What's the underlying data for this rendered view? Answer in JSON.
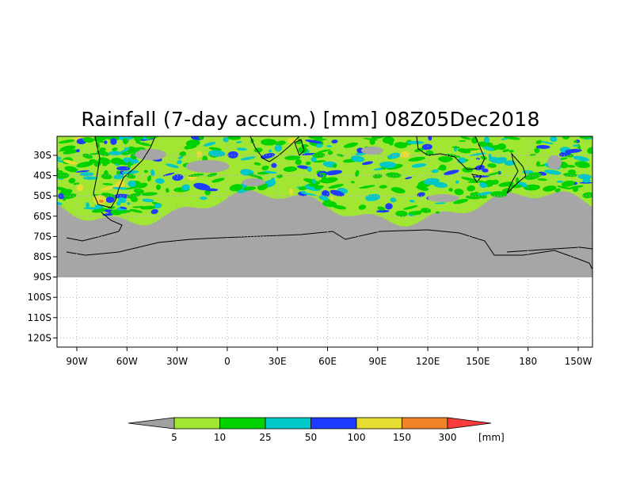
{
  "title": "Rainfall (7-day accum.) [mm] 08Z05Dec2018",
  "lon_labels": [
    "90W",
    "60W",
    "30W",
    "0",
    "30E",
    "60E",
    "90E",
    "120E",
    "150E",
    "180",
    "150W"
  ],
  "lat_labels": [
    "30S",
    "40S",
    "50S",
    "60S",
    "70S",
    "80S",
    "90S",
    "100S",
    "110S",
    "120S"
  ],
  "colorbar": {
    "values": [
      "5",
      "10",
      "25",
      "50",
      "100",
      "150",
      "300"
    ],
    "unit": "[mm]",
    "colors": [
      "#a0a0a0",
      "#a0e632",
      "#00d200",
      "#00c8c8",
      "#1e3cff",
      "#e6dc32",
      "#f08228",
      "#fa3c3c"
    ]
  },
  "colors": {
    "land_ocean_mask": "#a6a6a6",
    "grid": "#b0b0b0"
  }
}
